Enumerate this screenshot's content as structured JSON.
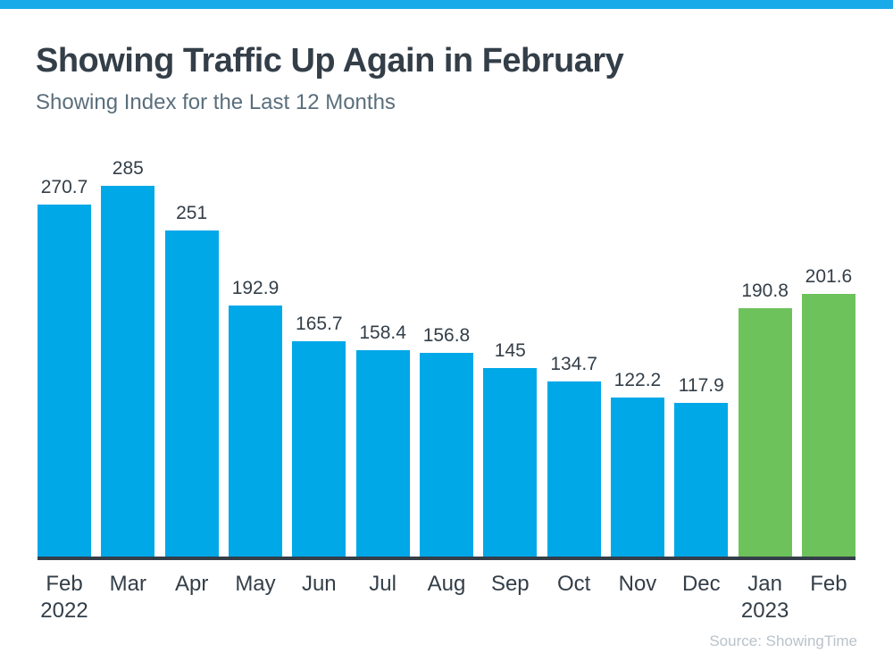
{
  "header": {
    "title": "Showing Traffic Up Again in February",
    "subtitle": "Showing Index for the Last 12 Months"
  },
  "footer": {
    "source": "Source: ShowingTime"
  },
  "colors": {
    "accent_strip": "#18aae9",
    "bar_blue": "#00a8e8",
    "bar_green": "#6ec25c",
    "title_text": "#333e48",
    "subtitle_text": "#5a6e7b",
    "label_text": "#333e48",
    "axis_line": "#333e48",
    "source_text": "#b9c3cb"
  },
  "chart_data": {
    "type": "bar",
    "title": "Showing Traffic Up Again in February",
    "subtitle": "Showing Index for the Last 12 Months",
    "categories": [
      "Feb 2022",
      "Mar",
      "Apr",
      "May",
      "Jun",
      "Jul",
      "Aug",
      "Sep",
      "Oct",
      "Nov",
      "Dec",
      "Jan 2023",
      "Feb"
    ],
    "values": [
      270.7,
      285,
      251,
      192.9,
      165.7,
      158.4,
      156.8,
      145,
      134.7,
      122.2,
      117.9,
      190.8,
      201.6
    ],
    "bars": [
      {
        "month": "Feb",
        "year": "2022",
        "value": 270.7,
        "color": "blue"
      },
      {
        "month": "Mar",
        "year": "",
        "value": 285,
        "color": "blue"
      },
      {
        "month": "Apr",
        "year": "",
        "value": 251,
        "color": "blue"
      },
      {
        "month": "May",
        "year": "",
        "value": 192.9,
        "color": "blue"
      },
      {
        "month": "Jun",
        "year": "",
        "value": 165.7,
        "color": "blue"
      },
      {
        "month": "Jul",
        "year": "",
        "value": 158.4,
        "color": "blue"
      },
      {
        "month": "Aug",
        "year": "",
        "value": 156.8,
        "color": "blue"
      },
      {
        "month": "Sep",
        "year": "",
        "value": 145,
        "color": "blue"
      },
      {
        "month": "Oct",
        "year": "",
        "value": 134.7,
        "color": "blue"
      },
      {
        "month": "Nov",
        "year": "",
        "value": 122.2,
        "color": "blue"
      },
      {
        "month": "Dec",
        "year": "",
        "value": 117.9,
        "color": "blue"
      },
      {
        "month": "Jan",
        "year": "2023",
        "value": 190.8,
        "color": "green"
      },
      {
        "month": "Feb",
        "year": "",
        "value": 201.6,
        "color": "green"
      }
    ],
    "xlabel": "",
    "ylabel": "",
    "ylim": [
      0,
      285
    ],
    "grid": false,
    "legend": "none",
    "value_labels_shown": true,
    "highlight_note": "Jan 2023 and Feb 2023 bars highlighted green; all prior months blue",
    "source": "Source: ShowingTime"
  }
}
